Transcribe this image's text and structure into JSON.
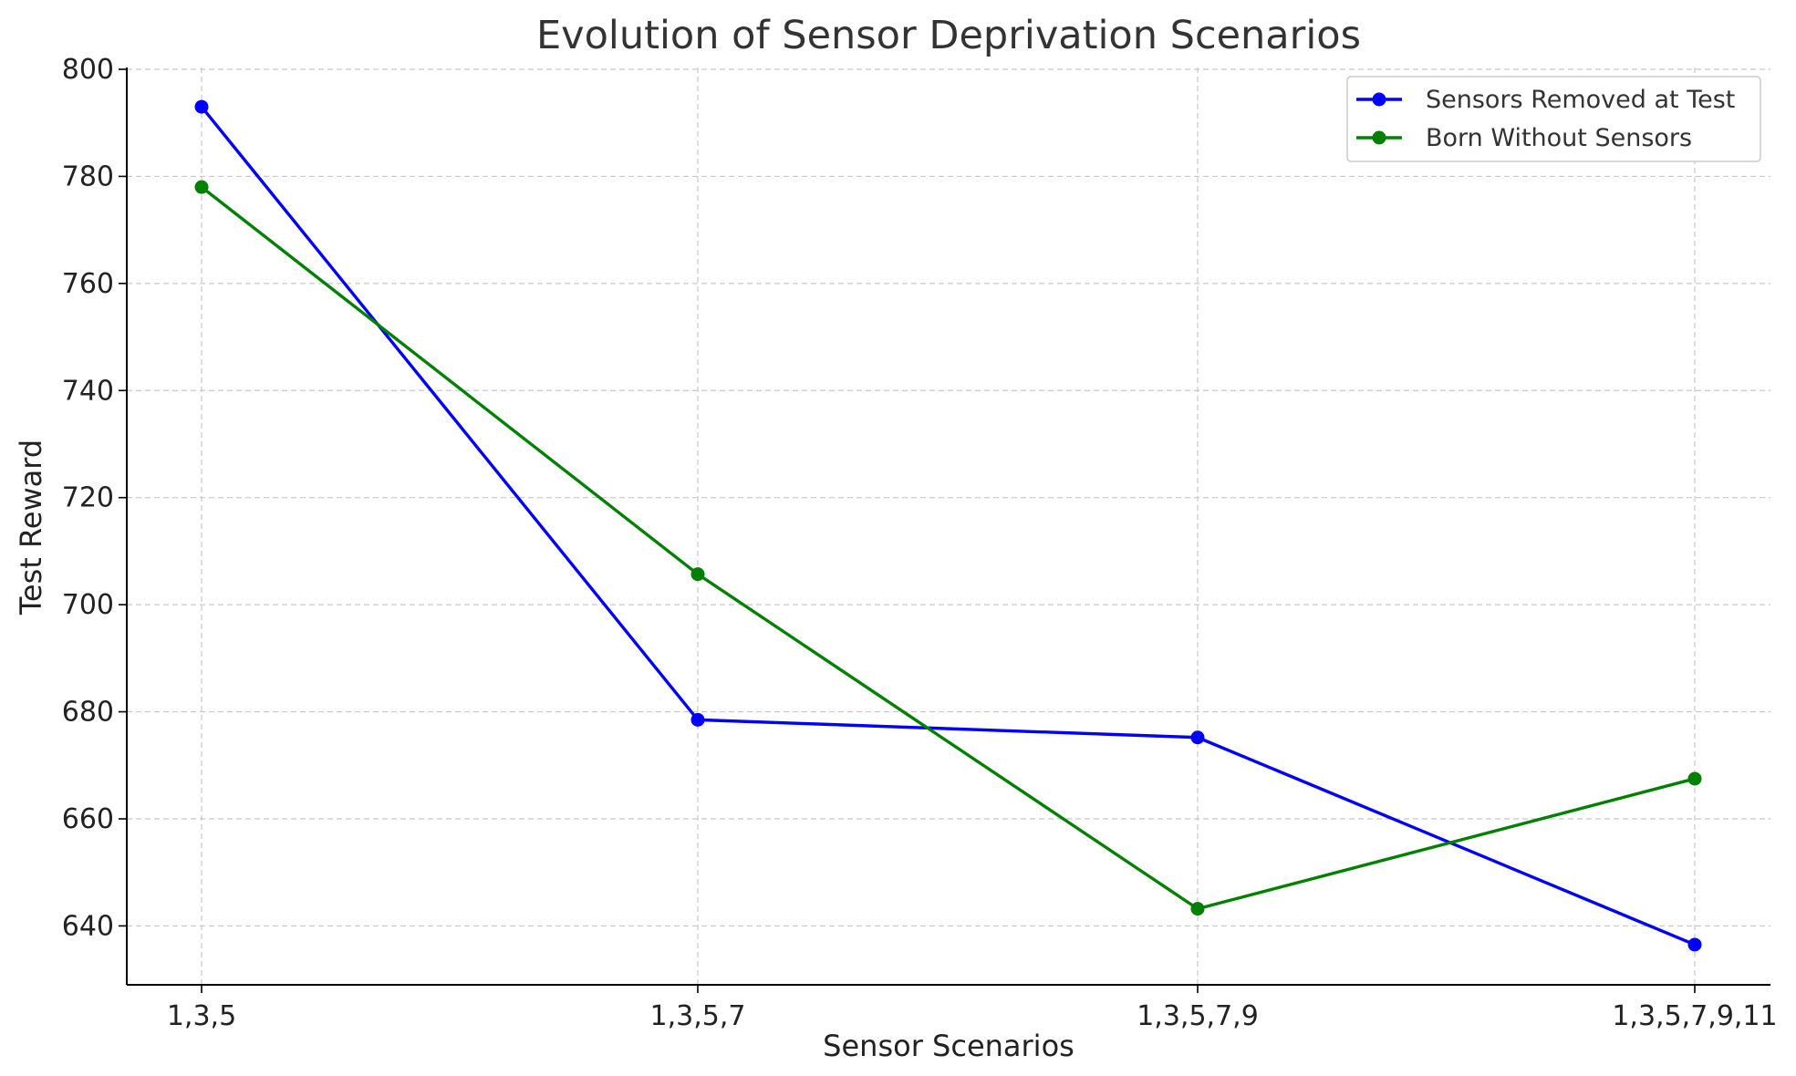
{
  "chart_data": {
    "type": "line",
    "title": "Evolution of Sensor Deprivation Scenarios",
    "xlabel": "Sensor Scenarios",
    "ylabel": "Test Reward",
    "categories": [
      "1,3,5",
      "1,3,5,7",
      "1,3,5,7,9",
      "1,3,5,7,9,11"
    ],
    "ylim": [
      629,
      800
    ],
    "yticks": [
      640,
      660,
      680,
      700,
      720,
      740,
      760,
      780,
      800
    ],
    "grid": true,
    "legend_position": "top-right",
    "series": [
      {
        "name": "Sensors Removed at Test",
        "color": "#0000ff",
        "values": [
          793,
          678.5,
          675.2,
          636.5
        ]
      },
      {
        "name": "Born Without Sensors",
        "color": "#008000",
        "values": [
          778,
          705.7,
          643.2,
          667.5
        ]
      }
    ]
  }
}
